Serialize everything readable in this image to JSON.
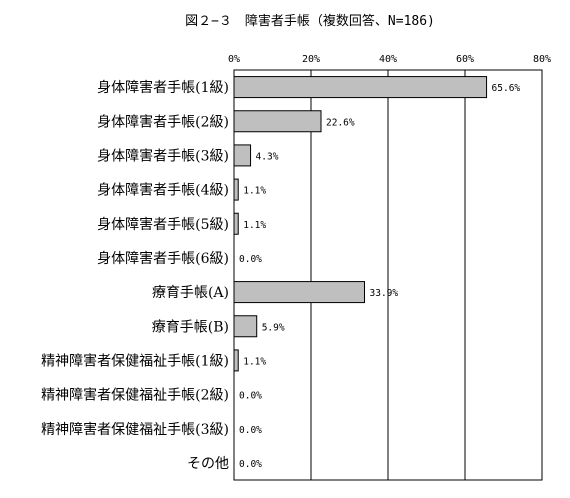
{
  "figure": {
    "title": "図２−３　障害者手帳（複数回答、N=186)"
  },
  "chart_data": {
    "type": "bar",
    "orientation": "horizontal",
    "title": "図２−３　障害者手帳（複数回答、N=186)",
    "categories": [
      "身体障害者手帳(1級)",
      "身体障害者手帳(2級)",
      "身体障害者手帳(3級)",
      "身体障害者手帳(4級)",
      "身体障害者手帳(5級)",
      "身体障害者手帳(6級)",
      "療育手帳(A)",
      "療育手帳(B)",
      "精神障害者保健福祉手帳(1級)",
      "精神障害者保健福祉手帳(2級)",
      "精神障害者保健福祉手帳(3級)",
      "その他"
    ],
    "values": [
      65.6,
      22.6,
      4.3,
      1.1,
      1.1,
      0.0,
      33.9,
      5.9,
      1.1,
      0.0,
      0.0,
      0.0
    ],
    "value_labels": [
      "65.6%",
      "22.6%",
      "4.3%",
      "1.1%",
      "1.1%",
      "0.0%",
      "33.9%",
      "5.9%",
      "1.1%",
      "0.0%",
      "0.0%",
      "0.0%"
    ],
    "xlim": [
      0,
      80
    ],
    "xticks": [
      0,
      20,
      40,
      60,
      80
    ],
    "xtick_labels": [
      "0%",
      "20%",
      "40%",
      "60%",
      "80%"
    ],
    "xaxis_position": "top",
    "grid": true,
    "legend": "none",
    "bar_color": "#bfbfbf",
    "bar_edge_color": "#000000"
  }
}
